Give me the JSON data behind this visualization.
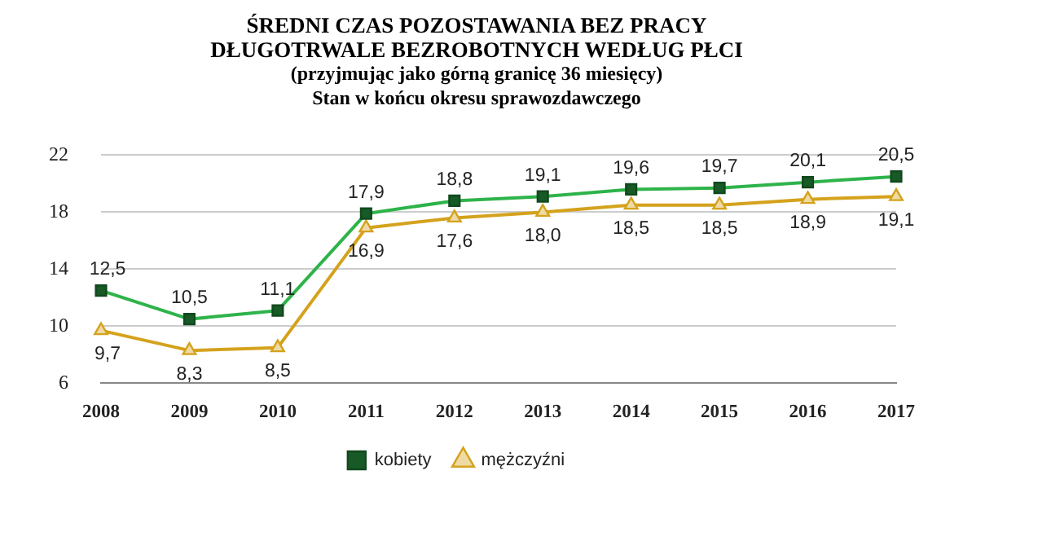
{
  "chart_data": {
    "type": "line",
    "title": "ŚREDNI CZAS POZOSTAWANIA BEZ PRACY\nDŁUGOTRWALE BEZROBOTNYCH WEDŁUG PŁCI",
    "subtitle": "(przyjmując  jako górną granicę 36 miesięcy)\nStan  w  końcu okresu  sprawozdawczego",
    "categories": [
      "2008",
      "2009",
      "2010",
      "2011",
      "2012",
      "2013",
      "2014",
      "2015",
      "2016",
      "2017"
    ],
    "series": [
      {
        "name": "kobiety",
        "color": "#2eb34a",
        "marker": "square",
        "values": [
          12.5,
          10.5,
          11.1,
          17.9,
          18.8,
          19.1,
          19.6,
          19.7,
          20.1,
          20.5
        ],
        "value_labels": [
          "12,5",
          "10,5",
          "11,1",
          "17,9",
          "18,8",
          "19,1",
          "19,6",
          "19,7",
          "20,1",
          "20,5"
        ]
      },
      {
        "name": "mężczyźni",
        "color": "#d4a21c",
        "marker": "triangle",
        "values": [
          9.7,
          8.3,
          8.5,
          16.9,
          17.6,
          18.0,
          18.5,
          18.5,
          18.9,
          19.1
        ],
        "value_labels": [
          "9,7",
          "8,3",
          "8,5",
          "16,9",
          "17,6",
          "18,0",
          "18,5",
          "18,5",
          "18,9",
          "19,1"
        ]
      }
    ],
    "ylim": [
      6,
      22
    ],
    "yticks": [
      6,
      10,
      14,
      18,
      22
    ],
    "grid": "y",
    "legend": "bottom",
    "line_style": "solid"
  }
}
